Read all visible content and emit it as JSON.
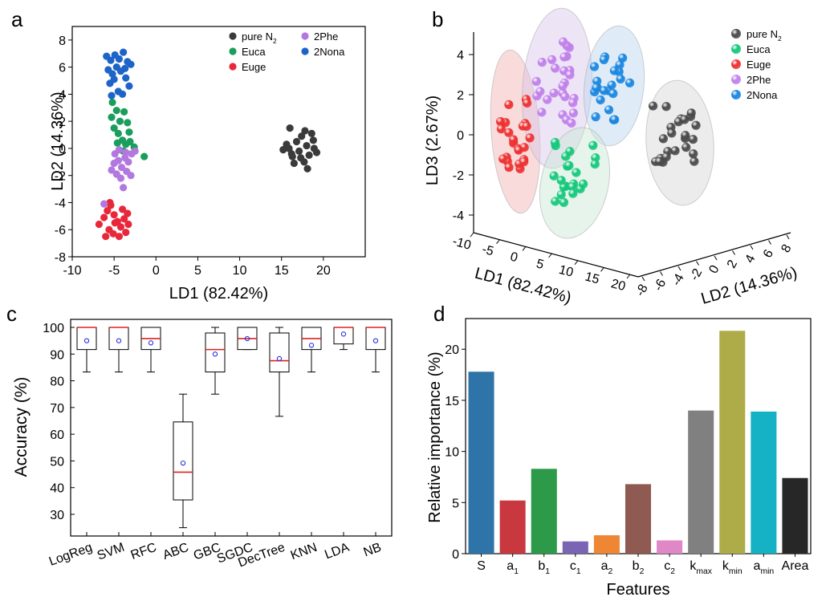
{
  "panel_labels": [
    "a",
    "b",
    "c",
    "d"
  ],
  "chart_data": [
    {
      "panel": "a",
      "type": "scatter",
      "xlabel": "LD1 (82.42%)",
      "ylabel": "LD2 (14.36%)",
      "xlim": [
        -10,
        25
      ],
      "ylim": [
        -8,
        9
      ],
      "xticks": [
        "-10",
        "-5",
        "0",
        "5",
        "10",
        "15",
        "20"
      ],
      "yticks": [
        "-8",
        "-6",
        "-4",
        "-2",
        "0",
        "2",
        "4",
        "6",
        "8"
      ],
      "legend_position": "top-right",
      "series": [
        {
          "name": "pure N",
          "name_sub": "2",
          "color": "#3a3a3a",
          "points": [
            [
              15.2,
              -0.1
            ],
            [
              15.6,
              0.3
            ],
            [
              16.0,
              1.5
            ],
            [
              16.3,
              -0.6
            ],
            [
              16.8,
              0.5
            ],
            [
              17.1,
              -0.2
            ],
            [
              17.4,
              0.9
            ],
            [
              17.7,
              -1.0
            ],
            [
              18.0,
              0.2
            ],
            [
              18.3,
              -0.5
            ],
            [
              18.6,
              1.1
            ],
            [
              18.9,
              0.0
            ],
            [
              19.2,
              -0.3
            ],
            [
              18.1,
              -1.5
            ],
            [
              16.5,
              -1.1
            ],
            [
              17.3,
              -0.7
            ],
            [
              15.9,
              0.0
            ],
            [
              18.8,
              0.6
            ],
            [
              17.8,
              1.3
            ],
            [
              16.2,
              -0.4
            ]
          ]
        },
        {
          "name": "Euca",
          "color": "#1a9e5c",
          "points": [
            [
              -5.2,
              3.4
            ],
            [
              -4.7,
              2.8
            ],
            [
              -4.3,
              2.0
            ],
            [
              -3.8,
              2.7
            ],
            [
              -3.4,
              1.9
            ],
            [
              -5.0,
              1.5
            ],
            [
              -4.5,
              1.1
            ],
            [
              -4.0,
              0.6
            ],
            [
              -3.6,
              0.3
            ],
            [
              -3.1,
              0.5
            ],
            [
              -2.6,
              0.1
            ],
            [
              -3.9,
              -0.2
            ],
            [
              -4.6,
              0.4
            ],
            [
              -1.4,
              -0.6
            ],
            [
              -5.3,
              2.3
            ],
            [
              -3.2,
              1.2
            ]
          ]
        },
        {
          "name": "Euge",
          "color": "#e8283a",
          "points": [
            [
              -6.8,
              -5.6
            ],
            [
              -6.2,
              -5.1
            ],
            [
              -5.8,
              -4.6
            ],
            [
              -5.4,
              -4.2
            ],
            [
              -5.0,
              -4.9
            ],
            [
              -4.6,
              -5.4
            ],
            [
              -4.2,
              -5.8
            ],
            [
              -3.8,
              -5.2
            ],
            [
              -3.4,
              -4.8
            ],
            [
              -5.6,
              -6.0
            ],
            [
              -5.1,
              -6.3
            ],
            [
              -4.4,
              -6.5
            ],
            [
              -3.6,
              -6.2
            ],
            [
              -6.0,
              -6.5
            ],
            [
              -4.9,
              -5.5
            ],
            [
              -4.0,
              -4.5
            ],
            [
              -5.5,
              -4.0
            ],
            [
              -3.3,
              -5.6
            ]
          ]
        },
        {
          "name": "2Phe",
          "color": "#b278e0",
          "points": [
            [
              -4.9,
              -0.4
            ],
            [
              -4.5,
              -0.9
            ],
            [
              -4.1,
              -1.4
            ],
            [
              -3.7,
              -0.7
            ],
            [
              -3.3,
              -1.0
            ],
            [
              -2.9,
              -0.4
            ],
            [
              -2.5,
              -0.2
            ],
            [
              -4.7,
              -1.9
            ],
            [
              -4.2,
              -2.2
            ],
            [
              -3.5,
              -1.7
            ],
            [
              -3.0,
              -2.0
            ],
            [
              -3.9,
              -2.9
            ],
            [
              -5.3,
              -1.6
            ],
            [
              -4.4,
              -0.1
            ],
            [
              -3.6,
              -0.3
            ],
            [
              -6.2,
              -4.1
            ],
            [
              -5.0,
              -1.1
            ]
          ]
        },
        {
          "name": "2Nona",
          "color": "#1e64c8",
          "points": [
            [
              -5.9,
              6.8
            ],
            [
              -5.4,
              6.5
            ],
            [
              -4.9,
              6.9
            ],
            [
              -4.4,
              6.6
            ],
            [
              -3.9,
              7.1
            ],
            [
              -3.4,
              6.4
            ],
            [
              -3.0,
              6.2
            ],
            [
              -5.7,
              5.8
            ],
            [
              -5.2,
              5.5
            ],
            [
              -4.7,
              6.0
            ],
            [
              -4.2,
              5.7
            ],
            [
              -3.7,
              5.9
            ],
            [
              -5.5,
              4.8
            ],
            [
              -5.0,
              5.1
            ],
            [
              -4.5,
              4.2
            ],
            [
              -3.2,
              4.6
            ],
            [
              -4.0,
              4.0
            ],
            [
              -5.3,
              3.9
            ],
            [
              -3.6,
              5.2
            ]
          ]
        }
      ]
    },
    {
      "panel": "b",
      "type": "scatter3d",
      "xlabel": "LD1 (82.42%)",
      "ylabel": "LD2 (14.36%)",
      "zlabel": "LD3 (2.67%)",
      "xticks": [
        "-10",
        "-5",
        "0",
        "5",
        "10",
        "15",
        "20"
      ],
      "yticks": [
        "-8",
        "-6",
        "-4",
        "-2",
        "0",
        "2",
        "4",
        "6",
        "8"
      ],
      "zticks": [
        "-4",
        "-2",
        "0",
        "2",
        "4"
      ],
      "legend_position": "top-right",
      "legend": [
        {
          "name": "pure N",
          "name_sub": "2",
          "color": "#4a4a4a"
        },
        {
          "name": "Euca",
          "color": "#14c87a"
        },
        {
          "name": "Euge",
          "color": "#ee3030"
        },
        {
          "name": "2Phe",
          "color": "#c080ea"
        },
        {
          "name": "2Nona",
          "color": "#1a86e0"
        }
      ]
    },
    {
      "panel": "c",
      "type": "box",
      "ylabel": "Accuracy (%)",
      "ylim": [
        25,
        100
      ],
      "yticks": [
        "30",
        "40",
        "50",
        "60",
        "70",
        "80",
        "90",
        "100"
      ],
      "categories": [
        "LogReg",
        "SVM",
        "RFC",
        "ABC",
        "GBC",
        "SGDC",
        "DecTree",
        "KNN",
        "LDA",
        "NB"
      ],
      "boxes": [
        {
          "min": 83.3,
          "q1": 91.7,
          "median": 100,
          "q3": 100,
          "max": 100,
          "mean": 95.0
        },
        {
          "min": 83.3,
          "q1": 91.7,
          "median": 100,
          "q3": 100,
          "max": 100,
          "mean": 95.0
        },
        {
          "min": 83.3,
          "q1": 91.7,
          "median": 95.8,
          "q3": 100,
          "max": 100,
          "mean": 94.2
        },
        {
          "min": 25.0,
          "q1": 35.4,
          "median": 45.8,
          "q3": 64.6,
          "max": 75.0,
          "mean": 49.2
        },
        {
          "min": 75.0,
          "q1": 83.3,
          "median": 91.7,
          "q3": 97.9,
          "max": 100,
          "mean": 90.0
        },
        {
          "min": 91.7,
          "q1": 91.7,
          "median": 95.8,
          "q3": 100,
          "max": 100,
          "mean": 95.8
        },
        {
          "min": 66.7,
          "q1": 83.3,
          "median": 87.5,
          "q3": 97.9,
          "max": 100,
          "mean": 88.3
        },
        {
          "min": 83.3,
          "q1": 91.7,
          "median": 95.8,
          "q3": 100,
          "max": 100,
          "mean": 93.3
        },
        {
          "min": 91.7,
          "q1": 93.8,
          "median": 100,
          "q3": 100,
          "max": 100,
          "mean": 97.5
        },
        {
          "min": 83.3,
          "q1": 91.7,
          "median": 100,
          "q3": 100,
          "max": 100,
          "mean": 95.0
        }
      ]
    },
    {
      "panel": "d",
      "type": "bar",
      "xlabel": "Features",
      "ylabel": "Relative importance (%)",
      "ylim": [
        0,
        23
      ],
      "yticks": [
        "0",
        "5",
        "10",
        "15",
        "20"
      ],
      "categories": [
        {
          "base": "S",
          "sub": ""
        },
        {
          "base": "a",
          "sub": "1"
        },
        {
          "base": "b",
          "sub": "1"
        },
        {
          "base": "c",
          "sub": "1"
        },
        {
          "base": "a",
          "sub": "2"
        },
        {
          "base": "b",
          "sub": "2"
        },
        {
          "base": "c",
          "sub": "2"
        },
        {
          "base": "k",
          "sub": "max"
        },
        {
          "base": "k",
          "sub": "min"
        },
        {
          "base": "a",
          "sub": "min"
        },
        {
          "base": "Area",
          "sub": ""
        }
      ],
      "values": [
        17.8,
        5.2,
        8.3,
        1.2,
        1.8,
        6.8,
        1.3,
        14.0,
        21.8,
        13.9,
        7.4
      ],
      "colors": [
        "#2e74a8",
        "#c8383e",
        "#2c9a48",
        "#7b64b4",
        "#ee8634",
        "#8e5a52",
        "#e087c8",
        "#808080",
        "#aeac48",
        "#14b2c4",
        "#272727"
      ]
    }
  ]
}
